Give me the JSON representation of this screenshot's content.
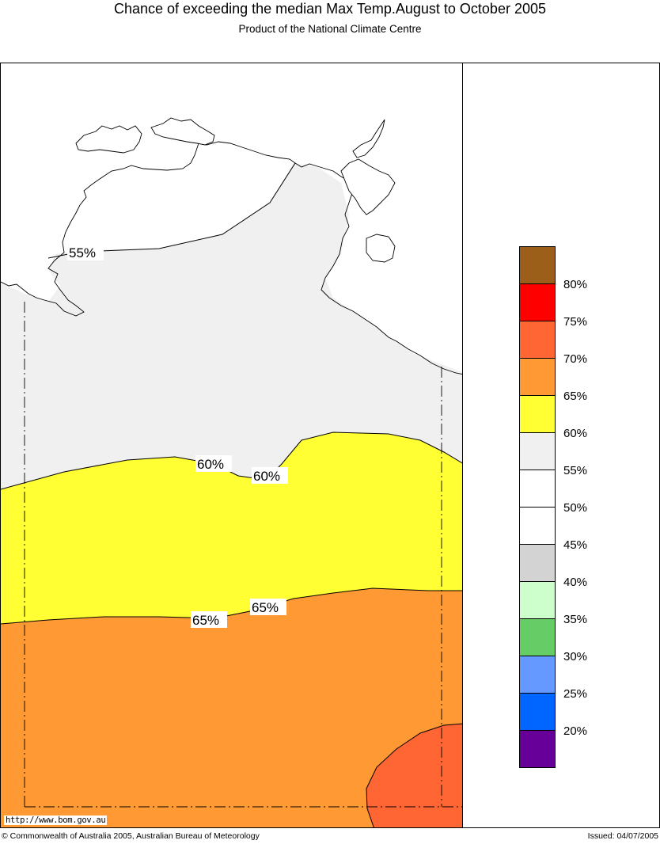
{
  "title": "Chance of exceeding the median Max Temp.August to October 2005",
  "subtitle": "Product of the National Climate Centre",
  "url": "http://www.bom.gov.au",
  "footer_left": "© Commonwealth of Australia 2005, Australian Bureau of Meteorology",
  "footer_right": "Issued: 04/07/2005",
  "contour_labels": {
    "c55": "55%",
    "c60a": "60%",
    "c60b": "60%",
    "c65a": "65%",
    "c65b": "65%"
  },
  "legend": {
    "swatch_colors": [
      "#9b5f1a",
      "#ff0000",
      "#ff6633",
      "#ff9933",
      "#ffff33",
      "#f0f0f0",
      "#ffffff",
      "#ffffff",
      "#d3d3d3",
      "#ccffcc",
      "#66cc66",
      "#6699ff",
      "#0066ff",
      "#660099"
    ],
    "labels": [
      "80%",
      "75%",
      "70%",
      "65%",
      "60%",
      "55%",
      "50%",
      "45%",
      "40%",
      "35%",
      "30%",
      "25%",
      "20%"
    ]
  },
  "region_colors": {
    "c55_60": "#f0f0f0",
    "c60_65": "#ffff33",
    "c65_70": "#ff9933",
    "c70_75": "#ff6633"
  }
}
